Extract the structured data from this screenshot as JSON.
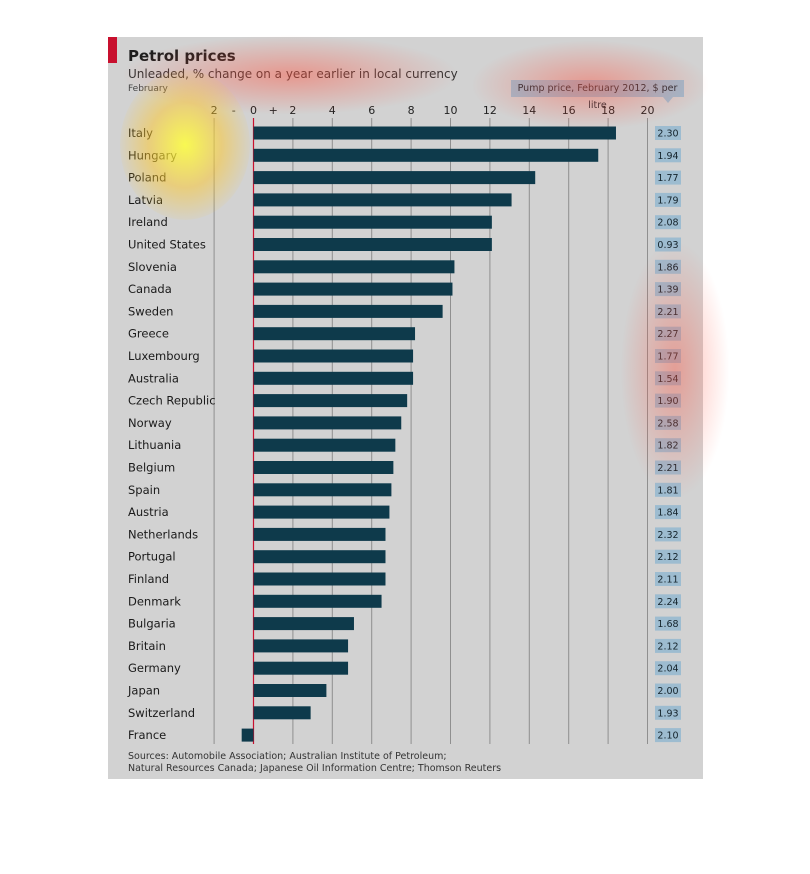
{
  "title": "Petrol prices",
  "subtitle": "Unleaded, % change on a year earlier in local currency",
  "date_label": "February",
  "pump_header": "Pump price, February 2012, $ per litre",
  "sources": [
    "Sources: Automobile Association; Australian Institute of Petroleum;",
    "Natural Resources Canada; Japanese Oil Information Centre; Thomson Reuters"
  ],
  "colors": {
    "bar": "#0e3a4b",
    "accent": "#c8102e",
    "pump_box": "#9dbcd0",
    "panel": "#d2d2d2"
  },
  "chart_data": {
    "type": "bar",
    "orientation": "horizontal",
    "title": "Petrol prices",
    "subtitle": "Unleaded, % change on a year earlier in local currency",
    "xlim": [
      -4,
      20
    ],
    "x_ticks": [
      -2,
      0,
      2,
      4,
      6,
      8,
      10,
      12,
      14,
      16,
      18,
      20
    ],
    "x_tick_labels": [
      "2",
      "0",
      "2",
      "4",
      "6",
      "8",
      "10",
      "12",
      "14",
      "16",
      "18",
      "20"
    ],
    "sign_labels": [
      "-",
      "+"
    ],
    "grid": true,
    "categories": [
      "Italy",
      "Hungary",
      "Poland",
      "Latvia",
      "Ireland",
      "United States",
      "Slovenia",
      "Canada",
      "Sweden",
      "Greece",
      "Luxembourg",
      "Australia",
      "Czech Republic",
      "Norway",
      "Lithuania",
      "Belgium",
      "Spain",
      "Austria",
      "Netherlands",
      "Portugal",
      "Finland",
      "Denmark",
      "Bulgaria",
      "Britain",
      "Germany",
      "Japan",
      "Switzerland",
      "France"
    ],
    "values": [
      18.4,
      17.5,
      14.3,
      13.1,
      12.1,
      12.1,
      10.2,
      10.1,
      9.6,
      8.2,
      8.1,
      8.1,
      7.8,
      7.5,
      7.2,
      7.1,
      7.0,
      6.9,
      6.7,
      6.7,
      6.7,
      6.5,
      5.1,
      4.8,
      4.8,
      3.7,
      2.9,
      -0.6
    ],
    "pump_price": [
      "2.30",
      "1.94",
      "1.77",
      "1.79",
      "2.08",
      "0.93",
      "1.86",
      "1.39",
      "2.21",
      "2.27",
      "1.77",
      "1.54",
      "1.90",
      "2.58",
      "1.82",
      "2.21",
      "1.81",
      "1.84",
      "2.32",
      "2.12",
      "2.11",
      "2.24",
      "1.68",
      "2.12",
      "2.04",
      "2.00",
      "1.93",
      "2.10"
    ]
  }
}
